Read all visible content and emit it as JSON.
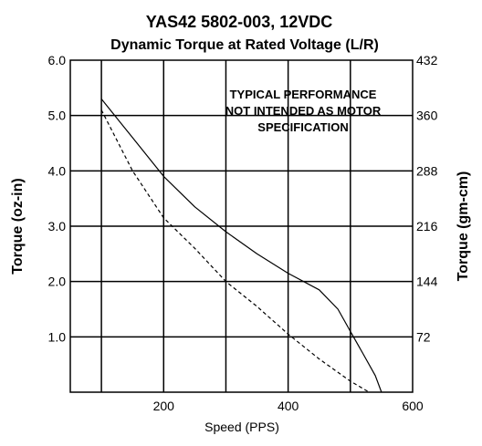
{
  "chart_data": {
    "type": "line",
    "title": "YAS42 5802-003, 12VDC",
    "subtitle": "Dynamic Torque at Rated Voltage (L/R)",
    "xlabel": "Speed (PPS)",
    "ylabel": "Torque (oz-in)",
    "ylabel_right": "Torque (gm-cm)",
    "xlim": [
      50,
      600
    ],
    "ylim": [
      0,
      6.0
    ],
    "x_ticks": [
      "200",
      "400",
      "600"
    ],
    "y_ticks": [
      "1.0",
      "2.0",
      "3.0",
      "4.0",
      "5.0",
      "6.0"
    ],
    "y2_ticks": [
      "72",
      "144",
      "216",
      "288",
      "360",
      "432"
    ],
    "annotation": [
      "TYPICAL PERFORMANCE",
      "NOT INTENDED AS MOTOR",
      "SPECIFICATION"
    ],
    "grid": true,
    "series": [
      {
        "style": "solid",
        "x": [
          100,
          150,
          200,
          250,
          300,
          350,
          400,
          450,
          480,
          500,
          520,
          540,
          550
        ],
        "y": [
          5.3,
          4.6,
          3.9,
          3.35,
          2.9,
          2.5,
          2.15,
          1.85,
          1.5,
          1.1,
          0.7,
          0.3,
          0.0
        ]
      },
      {
        "style": "dashed",
        "x": [
          100,
          150,
          200,
          250,
          300,
          350,
          400,
          450,
          500,
          530
        ],
        "y": [
          5.1,
          4.0,
          3.15,
          2.6,
          2.0,
          1.55,
          1.05,
          0.6,
          0.2,
          0.0
        ]
      }
    ]
  }
}
